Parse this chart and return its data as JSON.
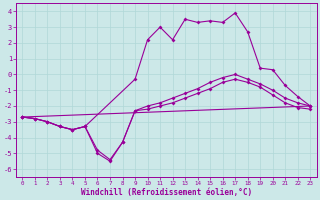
{
  "background_color": "#cce8e8",
  "grid_color": "#aacccc",
  "line_color": "#990099",
  "xlabel": "Windchill (Refroidissement éolien,°C)",
  "xlim": [
    -0.5,
    23.5
  ],
  "ylim": [
    -6.5,
    4.5
  ],
  "yticks": [
    -6,
    -5,
    -4,
    -3,
    -2,
    -1,
    0,
    1,
    2,
    3,
    4
  ],
  "xticks": [
    0,
    1,
    2,
    3,
    4,
    5,
    6,
    7,
    8,
    9,
    10,
    11,
    12,
    13,
    14,
    15,
    16,
    17,
    18,
    19,
    20,
    21,
    22,
    23
  ],
  "series": [
    {
      "x": [
        0,
        1,
        2,
        3,
        4,
        5,
        9,
        10,
        11,
        12,
        13,
        14,
        15,
        16,
        17,
        18,
        19,
        20,
        21,
        22,
        23
      ],
      "y": [
        -2.7,
        -2.8,
        -3.0,
        -3.3,
        -3.5,
        -3.3,
        -0.3,
        2.2,
        3.0,
        2.2,
        3.5,
        3.3,
        3.4,
        3.3,
        3.9,
        2.7,
        0.4,
        0.3,
        -0.7,
        -1.4,
        -2.0
      ]
    },
    {
      "x": [
        0,
        1,
        2,
        3,
        4,
        5,
        6,
        7,
        8,
        9,
        10,
        11,
        12,
        13,
        14,
        15,
        16,
        17,
        18,
        19,
        20,
        21,
        22,
        23
      ],
      "y": [
        -2.7,
        -2.8,
        -3.0,
        -3.3,
        -3.5,
        -3.3,
        -5.0,
        -5.5,
        -4.3,
        -2.3,
        -2.2,
        -2.0,
        -1.8,
        -1.5,
        -1.2,
        -0.9,
        -0.5,
        -0.3,
        -0.5,
        -0.8,
        -1.3,
        -1.8,
        -2.1,
        -2.2
      ]
    },
    {
      "x": [
        0,
        1,
        2,
        3,
        4,
        5,
        6,
        7,
        8,
        9,
        10,
        11,
        12,
        13,
        14,
        15,
        16,
        17,
        18,
        19,
        20,
        21,
        22,
        23
      ],
      "y": [
        -2.7,
        -2.8,
        -3.0,
        -3.3,
        -3.5,
        -3.3,
        -4.8,
        -5.4,
        -4.3,
        -2.3,
        -2.0,
        -1.8,
        -1.5,
        -1.2,
        -0.9,
        -0.5,
        -0.2,
        0.0,
        -0.3,
        -0.6,
        -1.0,
        -1.5,
        -1.8,
        -2.0
      ]
    },
    {
      "x": [
        0,
        23
      ],
      "y": [
        -2.7,
        -2.0
      ]
    }
  ]
}
